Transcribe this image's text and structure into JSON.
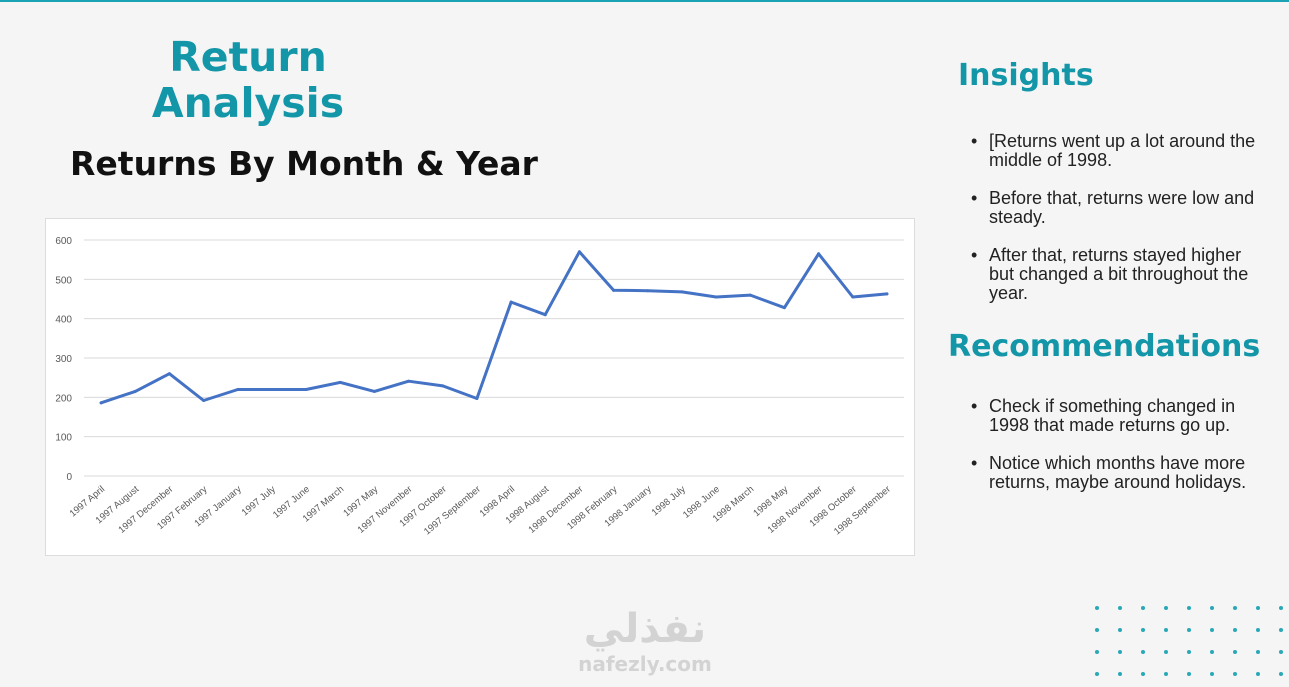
{
  "colors": {
    "accent": "#1296a8",
    "line": "#4472c4",
    "grid": "#d9d9d9",
    "tick_text": "#595959",
    "dots": "#2aa8b8",
    "top_rule": "#1aa3b5"
  },
  "header": {
    "title_line1": "Return",
    "title_line2": "Analysis",
    "subtitle": "Returns By Month & Year"
  },
  "insights": {
    "heading": "Insights",
    "items": [
      "[Returns went up a lot around the middle of 1998.",
      "Before that, returns were low and steady.",
      "After that, returns stayed higher but changed a bit throughout the year."
    ]
  },
  "recommendations": {
    "heading": "Recommendations",
    "items": [
      "Check if something changed in 1998 that made returns go up.",
      "Notice which months have more returns, maybe around holidays."
    ]
  },
  "watermark": {
    "arabic": "نفذلي",
    "latin": "nafezly.com"
  },
  "chart_data": {
    "type": "line",
    "title": "",
    "xlabel": "",
    "ylabel": "",
    "ylim": [
      0,
      600
    ],
    "yticks": [
      0,
      100,
      200,
      300,
      400,
      500,
      600
    ],
    "grid": true,
    "legend": "none",
    "categories": [
      "1997 April",
      "1997 August",
      "1997 December",
      "1997 February",
      "1997 January",
      "1997 July",
      "1997 June",
      "1997 March",
      "1997 May",
      "1997 November",
      "1997 October",
      "1997 September",
      "1998 April",
      "1998 August",
      "1998 December",
      "1998 February",
      "1998 January",
      "1998 July",
      "1998 June",
      "1998 March",
      "1998 May",
      "1998 November",
      "1998 October",
      "1998 September"
    ],
    "series": [
      {
        "values": [
          186,
          215,
          260,
          192,
          220,
          220,
          220,
          238,
          215,
          241,
          229,
          197,
          442,
          410,
          570,
          472,
          471,
          468,
          455,
          460,
          428,
          565,
          455,
          463
        ]
      }
    ]
  }
}
